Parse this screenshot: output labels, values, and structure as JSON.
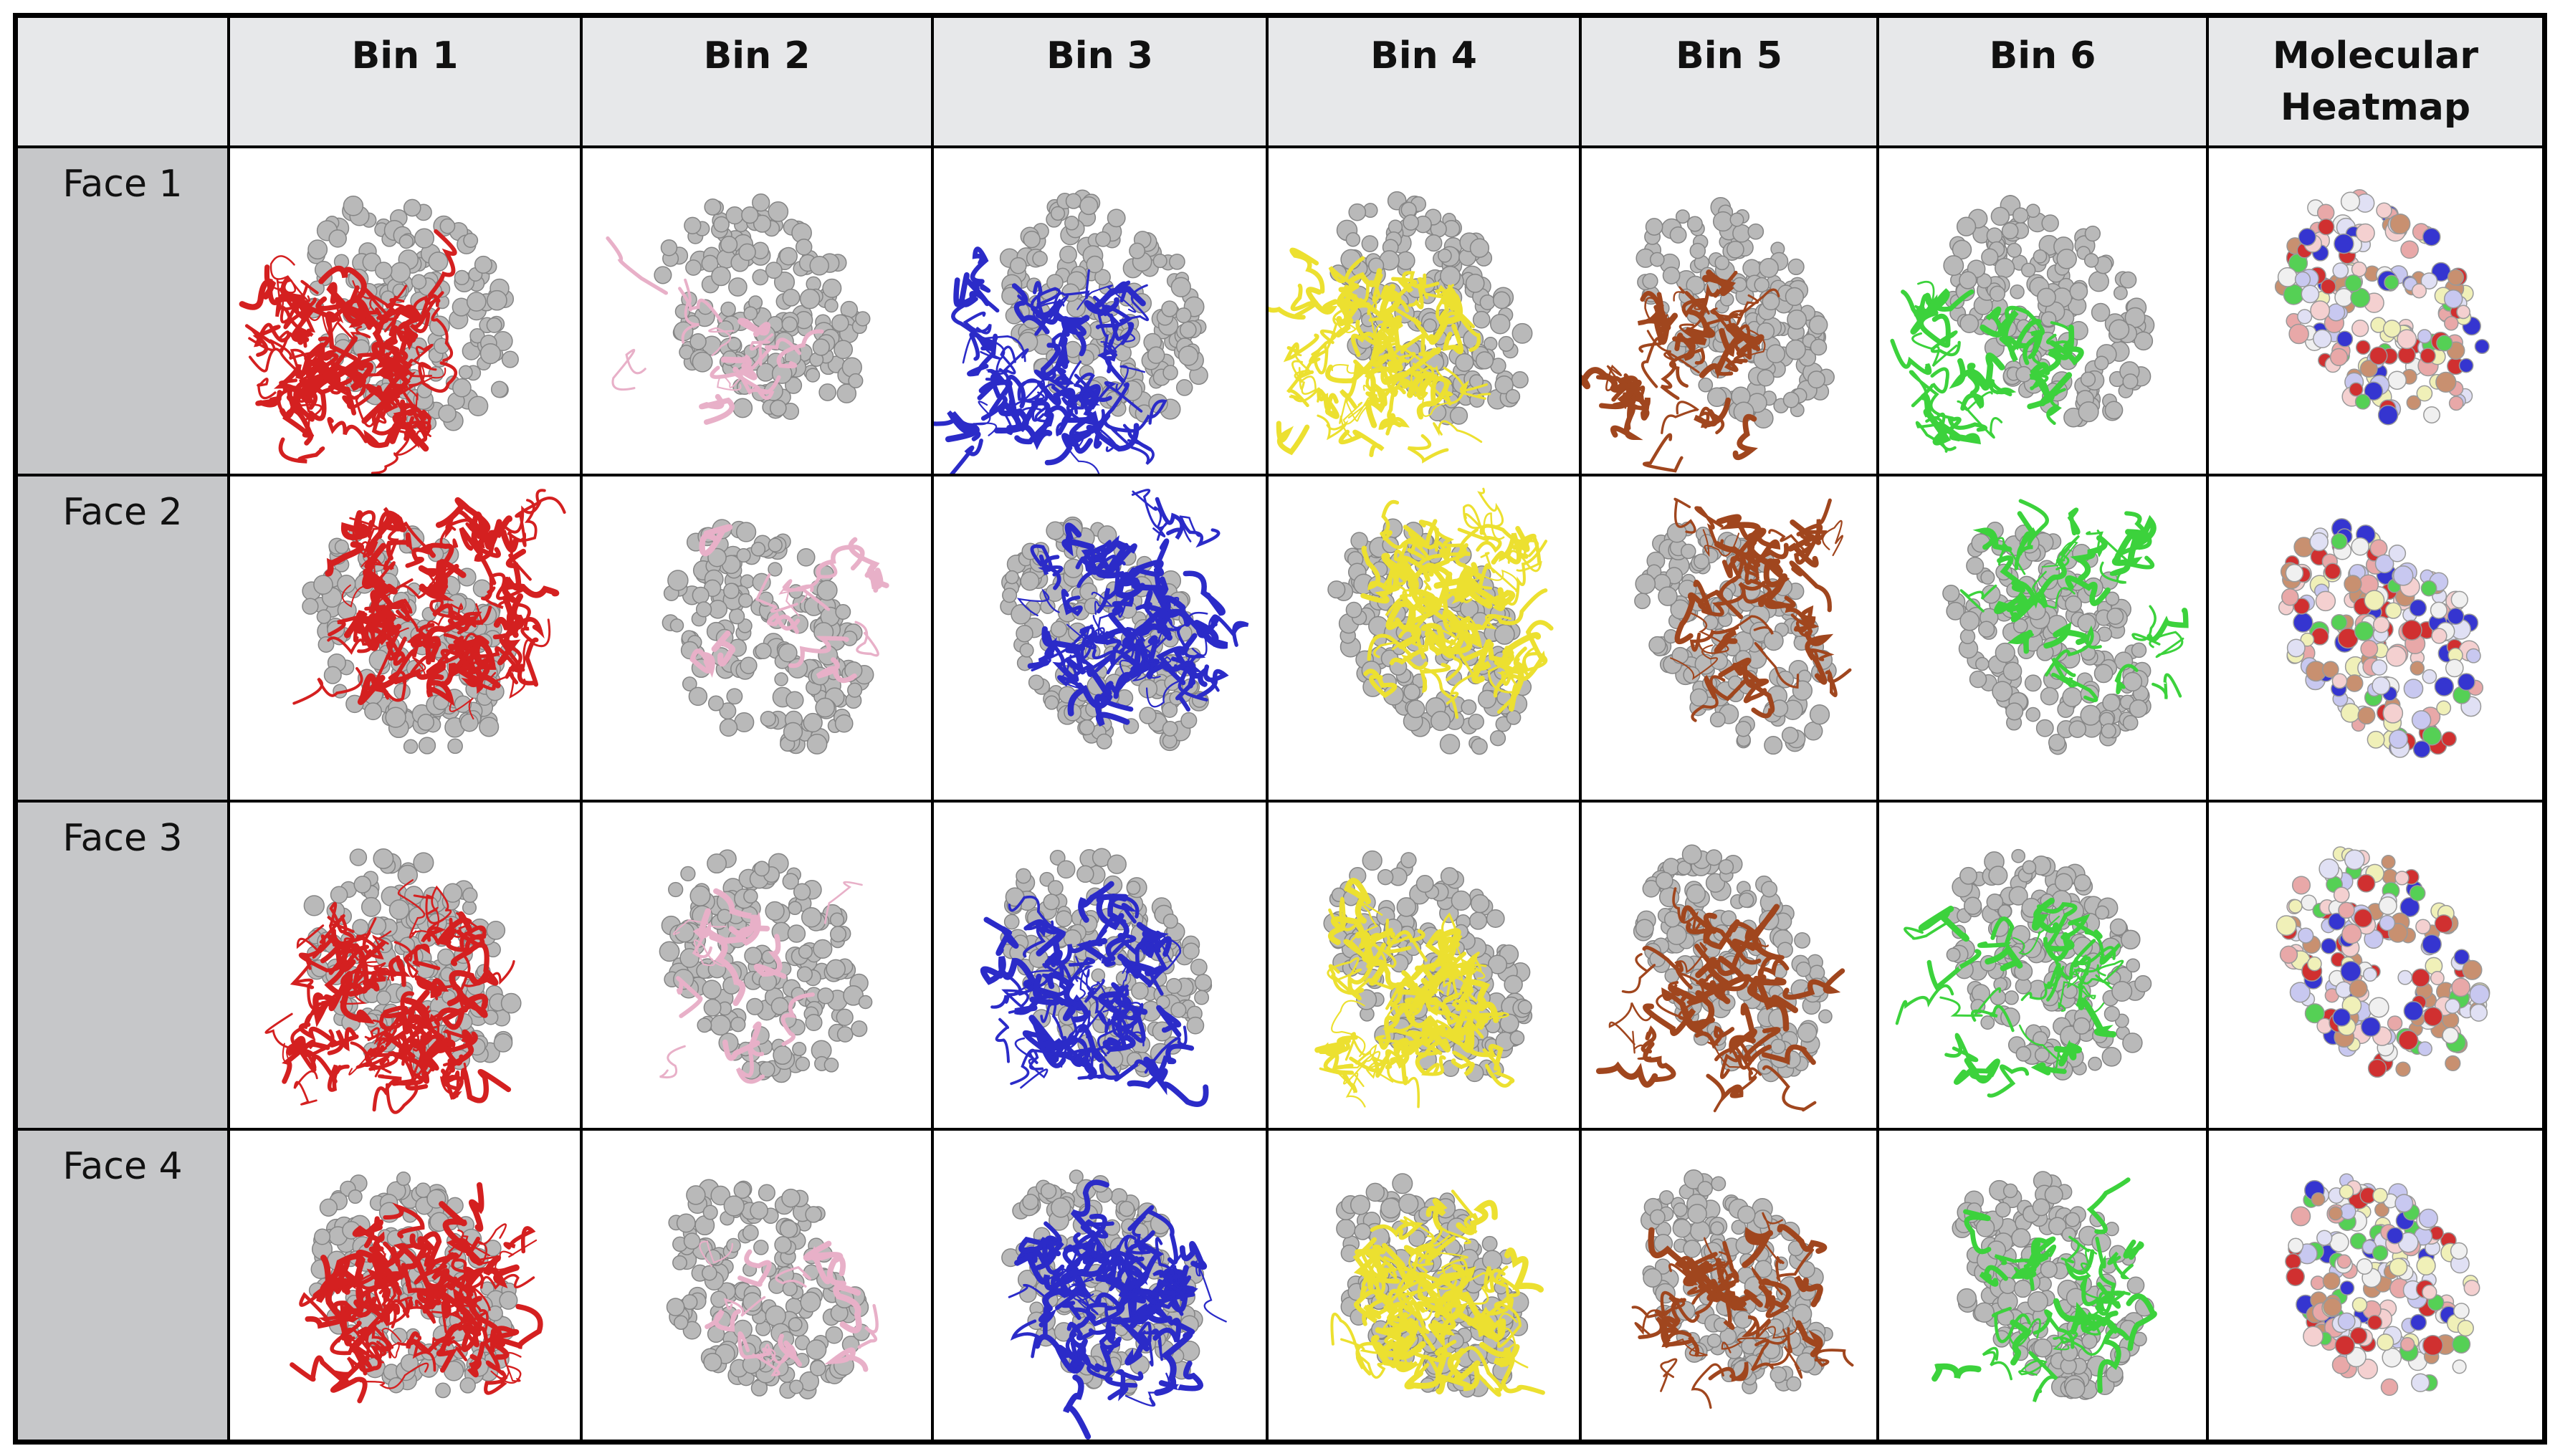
{
  "table": {
    "columns": [
      "Bin 1",
      "Bin 2",
      "Bin 3",
      "Bin 4",
      "Bin 5",
      "Bin 6",
      "Molecular Heatmap"
    ],
    "rows": [
      "Face 1",
      "Face 2",
      "Face 3",
      "Face 4"
    ]
  }
}
